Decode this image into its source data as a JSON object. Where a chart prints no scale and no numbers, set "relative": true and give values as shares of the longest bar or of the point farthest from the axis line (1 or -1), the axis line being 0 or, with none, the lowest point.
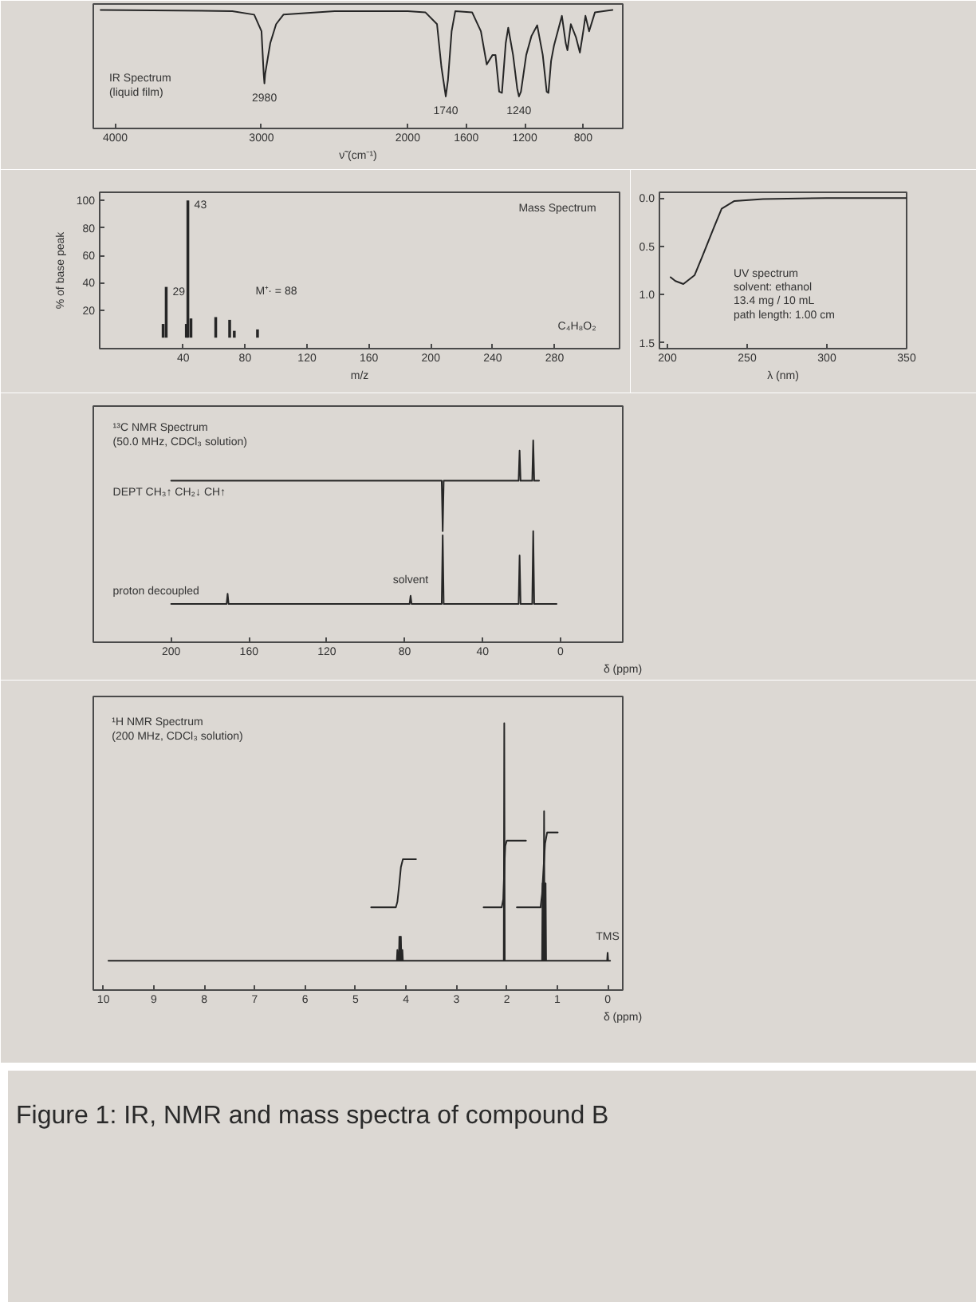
{
  "chart_data": [
    {
      "type": "line",
      "title": "IR Spectrum",
      "subtitle": "(liquid film)",
      "xlabel": "ν̃ (cm⁻¹)",
      "relative": true,
      "xlim": [
        4150,
        530
      ],
      "xticks": [
        4000,
        3000,
        2000,
        1600,
        1200,
        800
      ],
      "series": [
        {
          "color": "#262626",
          "x": [
            4100,
            3200,
            3050,
            3000,
            2985,
            2980,
            2975,
            2940,
            2900,
            2850,
            2500,
            2000,
            1880,
            1800,
            1770,
            1740,
            1725,
            1700,
            1675,
            1560,
            1500,
            1460,
            1420,
            1400,
            1375,
            1356,
            1330,
            1313,
            1280,
            1252,
            1240,
            1226,
            1190,
            1154,
            1115,
            1077,
            1050,
            1038,
            1020,
            1000,
            946,
            920,
            908,
            885,
            850,
            823,
            800,
            785,
            760,
            720,
            600
          ],
          "values": [
            1.0,
            0.99,
            0.96,
            0.82,
            0.46,
            0.38,
            0.46,
            0.72,
            0.88,
            0.96,
            0.99,
            0.99,
            0.98,
            0.88,
            0.52,
            0.27,
            0.41,
            0.82,
            0.99,
            0.98,
            0.82,
            0.54,
            0.62,
            0.62,
            0.31,
            0.3,
            0.72,
            0.85,
            0.62,
            0.34,
            0.27,
            0.31,
            0.62,
            0.78,
            0.87,
            0.62,
            0.31,
            0.3,
            0.57,
            0.7,
            0.95,
            0.72,
            0.66,
            0.88,
            0.77,
            0.64,
            0.82,
            0.95,
            0.82,
            0.98,
            1.0
          ]
        }
      ],
      "annotations": [
        {
          "text": "2980",
          "x": 2980,
          "y": 0.38
        },
        {
          "text": "1740",
          "x": 1740,
          "y": 0.27
        },
        {
          "text": "1240",
          "x": 1240,
          "y": 0.27
        }
      ]
    },
    {
      "type": "bar",
      "title": "Mass Spectrum",
      "xlabel": "m/z",
      "ylabel": "% of base peak",
      "x": [
        27,
        29,
        42,
        43,
        45,
        61,
        70,
        73,
        88
      ],
      "values": [
        10,
        37,
        10,
        100,
        14,
        15,
        13,
        5,
        6
      ],
      "color": "#262626",
      "xlim": [
        -14,
        322
      ],
      "xticks": [
        40,
        80,
        120,
        160,
        200,
        240,
        280
      ],
      "ylim": [
        -8,
        106
      ],
      "yticks": [
        20,
        40,
        60,
        80,
        100
      ],
      "annotations": [
        {
          "text": "29",
          "x": 29,
          "y": 37
        },
        {
          "text": "43",
          "x": 43,
          "y": 100
        },
        "M⁺· = 88",
        "C₄H₈O₂"
      ]
    },
    {
      "type": "line",
      "title": "UV spectrum",
      "xlabel": "λ (nm)",
      "xlim": [
        195,
        350
      ],
      "xticks": [
        200,
        250,
        300,
        350
      ],
      "ylim": [
        1.56,
        -0.06
      ],
      "yticks": [
        {
          "value": 0,
          "label": "0.0"
        },
        {
          "value": 0.5,
          "label": "0.5"
        },
        {
          "value": 1,
          "label": "1.0"
        },
        {
          "value": 1.5,
          "label": "1.5"
        }
      ],
      "series": [
        {
          "color": "#262626",
          "x": [
            202,
            205,
            210,
            217,
            222,
            229,
            234,
            242,
            260,
            300,
            350
          ],
          "values": [
            0.82,
            0.86,
            0.89,
            0.8,
            0.6,
            0.31,
            0.11,
            0.03,
            0.01,
            0.0,
            0.0
          ]
        }
      ],
      "annotations": [
        "solvent: ethanol",
        "13.4 mg / 10 mL",
        "path length: 1.00 cm"
      ]
    },
    {
      "type": "line",
      "title": "¹³C NMR Spectrum",
      "subtitle": "(50.0 MHz, CDCl₃ solution)",
      "xlabel": "δ (ppm)",
      "relative": true,
      "xlim": [
        240,
        -32
      ],
      "xticks": [
        200,
        160,
        120,
        80,
        40,
        0
      ],
      "series": [
        {
          "name": "DEPT   CH₃↑   CH₂↓   CH↑",
          "color": "#262626",
          "x": [
            200,
            61,
            60.5,
            60,
            21.5,
            21,
            20.5,
            14.5,
            14,
            13.5,
            11
          ],
          "values": [
            0.8,
            0.8,
            0.55,
            0.8,
            0.8,
            0.95,
            0.8,
            0.8,
            1.0,
            0.8,
            0.8
          ]
        },
        {
          "name": "proton decoupled",
          "color": "#262626",
          "x": [
            200,
            171.5,
            171,
            170.5,
            77.5,
            77,
            76.5,
            61,
            60.5,
            60,
            21.5,
            21,
            20.5,
            14.5,
            14,
            13.5,
            2
          ],
          "values": [
            0.19,
            0.19,
            0.24,
            0.19,
            0.19,
            0.23,
            0.19,
            0.19,
            0.53,
            0.19,
            0.19,
            0.43,
            0.19,
            0.19,
            0.55,
            0.19,
            0.19
          ]
        }
      ],
      "annotations": [
        {
          "text": "solvent",
          "x": 77,
          "y": 0.23
        }
      ]
    },
    {
      "type": "line",
      "title": "¹H NMR Spectrum",
      "subtitle": "(200 MHz, CDCl₃ solution)",
      "xlabel": "δ (ppm)",
      "relative": true,
      "xlim": [
        10.2,
        -0.3
      ],
      "xticks": [
        10,
        9,
        8,
        7,
        6,
        5,
        4,
        3,
        2,
        1,
        0
      ],
      "series": [
        {
          "color": "#262626",
          "x": [
            9.9,
            4.18,
            4.17,
            4.16,
            4.14,
            4.13,
            4.12,
            4.11,
            4.1,
            4.09,
            4.08,
            4.07,
            4.06,
            2.06,
            2.05,
            2.04,
            1.3,
            1.29,
            1.28,
            1.27,
            1.26,
            1.25,
            1.24,
            1.23,
            1.22,
            0.01,
            0.0,
            -0.01,
            -0.05
          ],
          "values": [
            0.11,
            0.11,
            0.15,
            0.11,
            0.11,
            0.2,
            0.11,
            0.11,
            0.2,
            0.11,
            0.11,
            0.15,
            0.11,
            0.11,
            1.0,
            0.11,
            0.11,
            0.4,
            0.11,
            0.11,
            0.67,
            0.11,
            0.11,
            0.4,
            0.11,
            0.11,
            0.14,
            0.11,
            0.11
          ]
        },
        {
          "color": "#262626",
          "x": [
            4.69,
            4.2,
            4.17,
            4.13,
            4.1,
            4.06,
            3.8
          ],
          "values": [
            0.31,
            0.31,
            0.33,
            0.4,
            0.46,
            0.49,
            0.49
          ]
        },
        {
          "color": "#262626",
          "x": [
            2.46,
            2.1,
            2.07,
            2.05,
            2.03,
            2.0,
            1.62
          ],
          "values": [
            0.31,
            0.31,
            0.34,
            0.45,
            0.54,
            0.56,
            0.56
          ]
        },
        {
          "color": "#262626",
          "x": [
            1.8,
            1.33,
            1.3,
            1.27,
            1.24,
            1.2,
            0.99
          ],
          "values": [
            0.31,
            0.31,
            0.36,
            0.46,
            0.55,
            0.59,
            0.59
          ]
        }
      ],
      "annotations": [
        {
          "text": "TMS",
          "x": 0,
          "y": 0.14
        },
        "Figure 1: IR, NMR and mass spectra of compound B"
      ]
    }
  ]
}
